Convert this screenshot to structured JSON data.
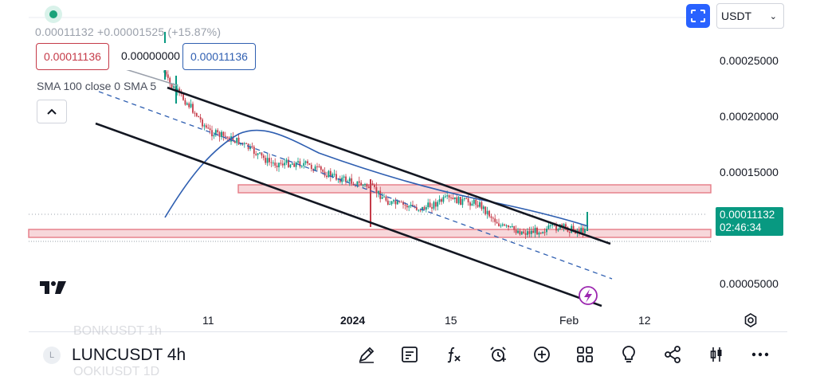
{
  "header": {
    "ohlc_summary": "0.00011132 +0.00001525 (+15.87%)",
    "sell_price": "0.00011136",
    "spread": "0.00000000",
    "buy_price": "0.00011136",
    "indicator_legend": "SMA 100 close 0 SMA 5",
    "currency": "USDT"
  },
  "price_axis": {
    "labels": [
      "0.00025000",
      "0.00020000",
      "0.00015000",
      "0.00005000"
    ],
    "current_price": "0.00011132",
    "countdown": "02:46:34"
  },
  "time_axis": {
    "labels": [
      "11",
      "2024",
      "15",
      "Feb",
      "12"
    ]
  },
  "watchlist": {
    "previous_symbol": "BONKUSDT  1h",
    "symbol_initial": "L",
    "symbol": "LUNCUSDT",
    "interval": "4h",
    "next_symbol": "OOKIUSDT  1D"
  },
  "toolbar": {
    "items": [
      "draw-icon",
      "indicators-icon",
      "function-icon",
      "alert-icon",
      "add-icon",
      "layouts-icon",
      "ideas-icon",
      "share-icon",
      "chart-type-icon",
      "more-icon"
    ]
  },
  "colors": {
    "bull": "#089981",
    "bear": "#c53a48",
    "sma": "#2f5fb1",
    "zone": "#e57a85",
    "accent": "#2962ff"
  }
}
